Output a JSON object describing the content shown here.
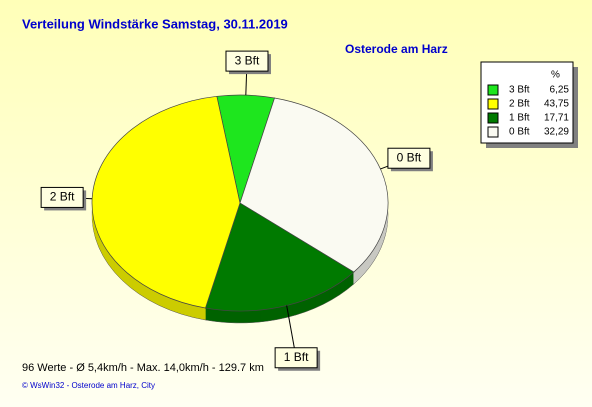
{
  "chart_data": {
    "type": "pie",
    "title": "Verteilung Windstärke  Samstag, 30.11.2019",
    "subtitle": "Osterode am Harz",
    "categories": [
      "3 Bft",
      "2 Bft",
      "1 Bft",
      "0 Bft"
    ],
    "values": [
      6.25,
      43.75,
      17.71,
      32.29
    ],
    "value_labels": [
      "6,25",
      "43,75",
      "17,71",
      "32,29"
    ],
    "colors": [
      "#1ee61e",
      "#ffff00",
      "#007a00",
      "#fafaf2"
    ],
    "legend_title": "%",
    "legend": "top-right",
    "footer": "96 Werte   -   Ø 5,4km/h  -  Max. 14,0km/h   -   129.7 km",
    "copyright": "© WsWin32  -  Osterode am Harz, City"
  }
}
